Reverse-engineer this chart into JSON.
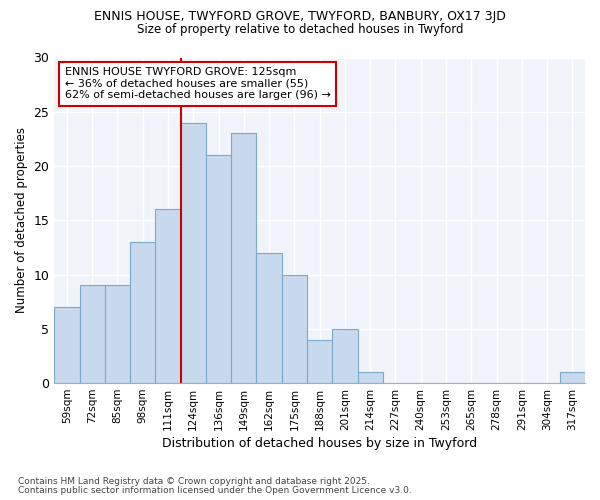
{
  "title1": "ENNIS HOUSE, TWYFORD GROVE, TWYFORD, BANBURY, OX17 3JD",
  "title2": "Size of property relative to detached houses in Twyford",
  "xlabel": "Distribution of detached houses by size in Twyford",
  "ylabel": "Number of detached properties",
  "categories": [
    "59sqm",
    "72sqm",
    "85sqm",
    "98sqm",
    "111sqm",
    "124sqm",
    "136sqm",
    "149sqm",
    "162sqm",
    "175sqm",
    "188sqm",
    "201sqm",
    "214sqm",
    "227sqm",
    "240sqm",
    "253sqm",
    "265sqm",
    "278sqm",
    "291sqm",
    "304sqm",
    "317sqm"
  ],
  "values": [
    7,
    9,
    9,
    13,
    16,
    24,
    21,
    23,
    12,
    10,
    4,
    5,
    1,
    0,
    0,
    0,
    0,
    0,
    0,
    0,
    1
  ],
  "bar_color": "#c8d8ed",
  "bar_edge_color": "#7aaac8",
  "highlight_line_color": "#cc0000",
  "highlight_bar_index": 5,
  "annotation_text": "ENNIS HOUSE TWYFORD GROVE: 125sqm\n← 36% of detached houses are smaller (55)\n62% of semi-detached houses are larger (96) →",
  "annotation_box_color": "#ffffff",
  "annotation_box_edge": "#cc0000",
  "ylim": [
    0,
    30
  ],
  "yticks": [
    0,
    5,
    10,
    15,
    20,
    25,
    30
  ],
  "background_color": "#ffffff",
  "plot_bg_color": "#f0f4fa",
  "grid_color": "#ffffff",
  "footer1": "Contains HM Land Registry data © Crown copyright and database right 2025.",
  "footer2": "Contains public sector information licensed under the Open Government Licence v3.0."
}
